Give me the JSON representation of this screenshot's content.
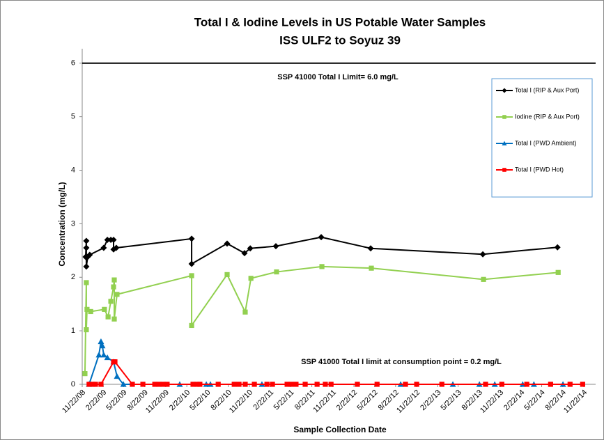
{
  "chart_data": {
    "type": "line",
    "title": "Total I & Iodine Levels in US Potable Water Samples",
    "subtitle": "ISS ULF2 to Soyuz 39",
    "y_label": "Concentration (mg/L)",
    "x_label": "Sample Collection Date",
    "annotations": [
      {
        "text": "SSP 41000 Total I Limit=  6.0 mg/L"
      },
      {
        "text": "SSP 41000 Total I limit at consumption point = 0.2 mg/L"
      }
    ],
    "reference_line": 6,
    "legend": "upper right",
    "ylim": [
      0,
      6.4
    ],
    "yticks": [
      0,
      1,
      2,
      3,
      4,
      5,
      6
    ],
    "xlim": [
      "2008-11-22",
      "2014-11-22"
    ],
    "xticks": [
      {
        "value": "2008-11-22",
        "label": "11/22/08"
      },
      {
        "value": "2009-02-22",
        "label": "2/22/09"
      },
      {
        "value": "2009-05-22",
        "label": "5/22/09"
      },
      {
        "value": "2009-08-22",
        "label": "8/22/09"
      },
      {
        "value": "2009-11-22",
        "label": "11/22/09"
      },
      {
        "value": "2010-02-22",
        "label": "2/22/10"
      },
      {
        "value": "2010-05-22",
        "label": "5/22/10"
      },
      {
        "value": "2010-08-22",
        "label": "8/22/10"
      },
      {
        "value": "2010-11-22",
        "label": "11/22/10"
      },
      {
        "value": "2011-02-22",
        "label": "2/22/11"
      },
      {
        "value": "2011-05-22",
        "label": "5/22/11"
      },
      {
        "value": "2011-08-22",
        "label": "8/22/11"
      },
      {
        "value": "2011-11-22",
        "label": "11/22/11"
      },
      {
        "value": "2012-02-22",
        "label": "2/22/12"
      },
      {
        "value": "2012-05-22",
        "label": "5/22/12"
      },
      {
        "value": "2012-08-22",
        "label": "8/22/12"
      },
      {
        "value": "2012-11-22",
        "label": "11/22/12"
      },
      {
        "value": "2013-02-22",
        "label": "2/22/13"
      },
      {
        "value": "2013-05-22",
        "label": "5/22/13"
      },
      {
        "value": "2013-08-22",
        "label": "8/22/13"
      },
      {
        "value": "2013-11-22",
        "label": "11/22/13"
      },
      {
        "value": "2014-02-22",
        "label": "2/22/14"
      },
      {
        "value": "2014-05-22",
        "label": "5/22/14"
      },
      {
        "value": "2014-08-22",
        "label": "8/22/14"
      },
      {
        "value": "2014-11-22",
        "label": "11/22/14"
      }
    ],
    "series": [
      {
        "name": "Total I (RIP & Aux Port)",
        "color": "#000000",
        "marker": "diamond",
        "x": [
          "2008-12-07",
          "2008-12-10",
          "2008-12-10",
          "2008-12-10",
          "2008-12-16",
          "2008-12-25",
          "2009-02-24",
          "2009-03-12",
          "2009-03-27",
          "2009-04-08",
          "2009-04-08",
          "2009-04-20",
          "2010-03-15",
          "2010-03-15",
          "2010-08-17",
          "2010-11-01",
          "2010-11-26",
          "2011-03-18",
          "2011-10-02",
          "2012-05-05",
          "2013-09-07",
          "2014-07-30"
        ],
        "values": [
          2.38,
          2.68,
          2.55,
          2.2,
          2.38,
          2.42,
          2.55,
          2.7,
          2.7,
          2.7,
          2.52,
          2.55,
          2.72,
          2.25,
          2.63,
          2.45,
          2.54,
          2.58,
          2.75,
          2.54,
          2.43,
          2.56
        ]
      },
      {
        "name": "Iodine (RIP & Aux Port)",
        "color": "#92d050",
        "marker": "square",
        "x": [
          "2008-12-04",
          "2008-12-10",
          "2008-12-10",
          "2008-12-13",
          "2008-12-29",
          "2009-02-27",
          "2009-03-15",
          "2009-03-27",
          "2009-04-08",
          "2009-04-11",
          "2009-04-11",
          "2009-04-23",
          "2010-03-15",
          "2010-03-15",
          "2010-08-17",
          "2010-11-04",
          "2010-11-29",
          "2011-03-21",
          "2011-10-05",
          "2012-05-08",
          "2013-09-10",
          "2014-08-02"
        ],
        "values": [
          0.2,
          1.9,
          1.02,
          1.4,
          1.36,
          1.4,
          1.26,
          1.55,
          1.82,
          1.95,
          1.22,
          1.68,
          2.03,
          1.1,
          2.05,
          1.35,
          1.98,
          2.1,
          2.2,
          2.17,
          1.96,
          2.09
        ]
      },
      {
        "name": "Total I (PWD Ambient)",
        "color": "#0070c0",
        "marker": "triangle",
        "x": [
          "2008-12-22",
          "2009-02-03",
          "2009-02-12",
          "2009-02-18",
          "2009-02-24",
          "2009-03-12",
          "2009-04-08",
          "2009-04-23",
          "2009-05-21",
          "2010-01-22",
          "2010-05-18",
          "2010-06-05",
          "2011-01-16",
          "2012-09-13",
          "2013-04-29",
          "2013-08-23",
          "2013-10-29",
          "2014-02-28",
          "2014-04-18",
          "2014-08-23"
        ],
        "values": [
          0,
          0.55,
          0.8,
          0.72,
          0.55,
          0.5,
          0.42,
          0.15,
          0,
          0,
          0,
          0,
          0,
          0,
          0,
          0,
          0,
          0,
          0,
          0
        ]
      },
      {
        "name": "Total I (PWD Hot)",
        "color": "#ff0000",
        "marker": "square",
        "x": [
          "2008-12-22",
          "2009-01-07",
          "2009-01-19",
          "2009-02-12",
          "2009-04-08",
          "2009-04-14",
          "2009-06-29",
          "2009-08-14",
          "2009-10-05",
          "2009-10-23",
          "2009-11-10",
          "2009-11-28",
          "2010-03-21",
          "2010-04-08",
          "2010-04-20",
          "2010-07-09",
          "2010-09-17",
          "2010-10-08",
          "2010-11-04",
          "2010-12-14",
          "2011-02-07",
          "2011-03-03",
          "2011-05-06",
          "2011-05-24",
          "2011-06-14",
          "2011-07-24",
          "2011-09-14",
          "2011-10-20",
          "2011-11-14",
          "2012-03-08",
          "2012-06-02",
          "2012-10-04",
          "2012-11-22",
          "2013-03-12",
          "2013-09-19",
          "2013-11-29",
          "2014-03-18",
          "2014-06-30",
          "2014-09-23",
          "2014-11-17"
        ],
        "values": [
          0,
          0,
          0,
          0,
          0.42,
          0.42,
          0,
          0,
          0,
          0,
          0,
          0,
          0,
          0,
          0,
          0,
          0,
          0,
          0,
          0,
          0,
          0,
          0,
          0,
          0,
          0,
          0,
          0,
          0,
          0,
          0,
          0,
          0,
          0,
          0,
          0,
          0,
          0,
          0,
          0
        ]
      }
    ]
  }
}
